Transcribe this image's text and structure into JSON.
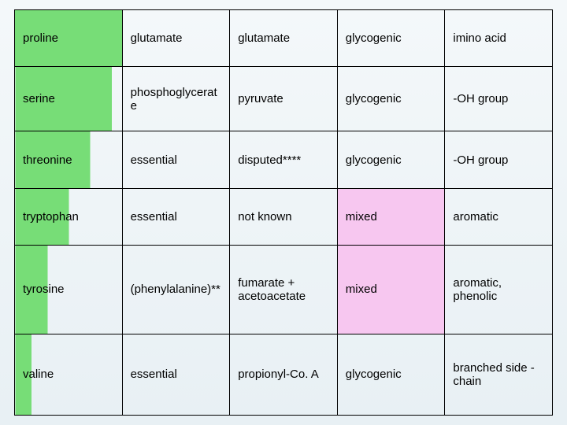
{
  "table": {
    "type": "table",
    "columns": 5,
    "rows": [
      [
        "proline",
        "glutamate",
        "glutamate",
        "glycogenic",
        "imino acid"
      ],
      [
        "serine",
        "phosphoglycerate",
        "pyruvate",
        "glycogenic",
        "-OH group"
      ],
      [
        "threonine",
        "essential",
        "disputed****",
        "glycogenic",
        "-OH group"
      ],
      [
        "tryptophan",
        "essential",
        "not known",
        "mixed",
        "aromatic"
      ],
      [
        "tyrosine",
        "(phenylalanine)**",
        "fumarate + acetoacetate",
        "mixed",
        "aromatic, phenolic"
      ],
      [
        "valine",
        "essential",
        "propionyl-Co. A",
        "glycogenic",
        "branched side -chain"
      ]
    ],
    "row_heights_percent": [
      14,
      16,
      14,
      14,
      22,
      20
    ],
    "cell_font_size": 15,
    "text_color": "#000000",
    "border_color": "#000000",
    "background_color": "transparent",
    "col0_highlight": {
      "color": "#77dd77",
      "width_percent_by_row": [
        100,
        90,
        70,
        50,
        30,
        15
      ]
    },
    "col3_highlight": {
      "rows": [
        3,
        4
      ],
      "color": "#f7c7f0"
    }
  }
}
